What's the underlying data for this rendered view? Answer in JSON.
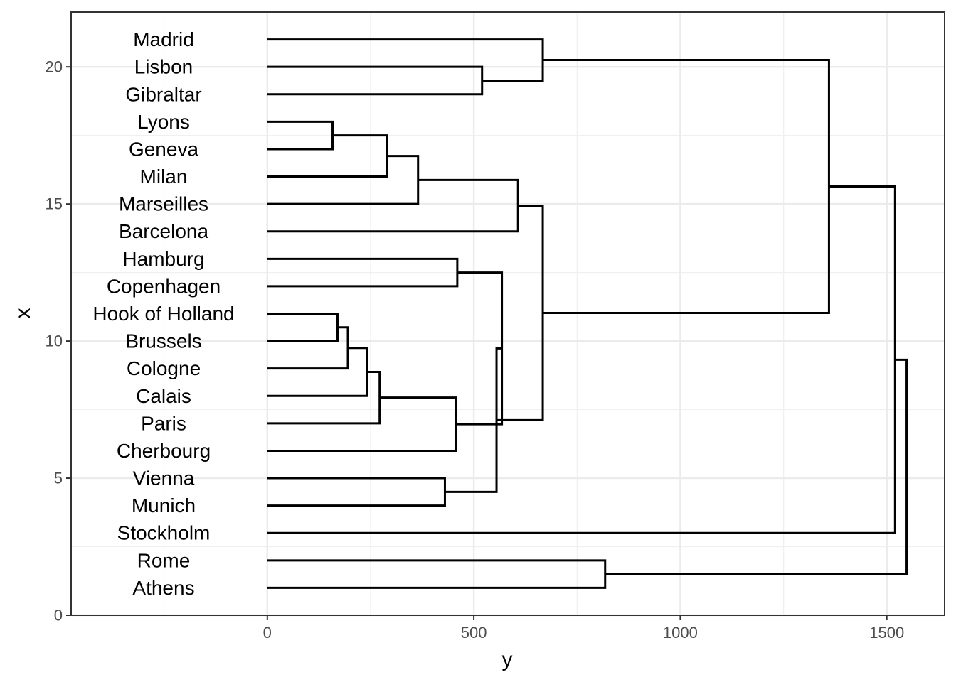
{
  "chart_data": {
    "type": "dendrogram",
    "orientation": "horizontal",
    "xlabel": "y",
    "ylabel": "x",
    "xlim": [
      -475,
      1640
    ],
    "ylim": [
      0,
      22
    ],
    "x_ticks": [
      0,
      500,
      1000,
      1500
    ],
    "y_ticks": [
      0,
      5,
      10,
      15,
      20
    ],
    "grid": true,
    "leaves": [
      {
        "label": "Madrid",
        "pos": 21
      },
      {
        "label": "Lisbon",
        "pos": 20
      },
      {
        "label": "Gibraltar",
        "pos": 19
      },
      {
        "label": "Lyons",
        "pos": 18
      },
      {
        "label": "Geneva",
        "pos": 17
      },
      {
        "label": "Milan",
        "pos": 16
      },
      {
        "label": "Marseilles",
        "pos": 15
      },
      {
        "label": "Barcelona",
        "pos": 14
      },
      {
        "label": "Hamburg",
        "pos": 13
      },
      {
        "label": "Copenhagen",
        "pos": 12
      },
      {
        "label": "Hook of Holland",
        "pos": 11
      },
      {
        "label": "Brussels",
        "pos": 10
      },
      {
        "label": "Cologne",
        "pos": 9
      },
      {
        "label": "Calais",
        "pos": 8
      },
      {
        "label": "Paris",
        "pos": 7
      },
      {
        "label": "Cherbourg",
        "pos": 6
      },
      {
        "label": "Vienna",
        "pos": 5
      },
      {
        "label": "Munich",
        "pos": 4
      },
      {
        "label": "Stockholm",
        "pos": 3
      },
      {
        "label": "Rome",
        "pos": 2
      },
      {
        "label": "Athens",
        "pos": 1
      }
    ],
    "merges": [
      {
        "pos": [
          18,
          17
        ],
        "from": [
          0,
          0
        ],
        "height": 158
      },
      {
        "pos": [
          17.5,
          16
        ],
        "from": [
          158,
          0
        ],
        "height": 290
      },
      {
        "pos": [
          16.75,
          15
        ],
        "from": [
          290,
          0
        ],
        "height": 365
      },
      {
        "pos": [
          15.875,
          14
        ],
        "from": [
          365,
          0
        ],
        "height": 607
      },
      {
        "pos": [
          11,
          10
        ],
        "from": [
          0,
          0
        ],
        "height": 170
      },
      {
        "pos": [
          10.5,
          9
        ],
        "from": [
          170,
          0
        ],
        "height": 195
      },
      {
        "pos": [
          9.75,
          8
        ],
        "from": [
          195,
          0
        ],
        "height": 242
      },
      {
        "pos": [
          8.875,
          7
        ],
        "from": [
          242,
          0
        ],
        "height": 272
      },
      {
        "pos": [
          7.9375,
          6
        ],
        "from": [
          272,
          0
        ],
        "height": 457
      },
      {
        "pos": [
          13,
          12
        ],
        "from": [
          0,
          0
        ],
        "height": 460
      },
      {
        "pos": [
          12.5,
          6.96875
        ],
        "from": [
          460,
          457
        ],
        "height": 568
      },
      {
        "pos": [
          5,
          4
        ],
        "from": [
          0,
          0
        ],
        "height": 430
      },
      {
        "pos": [
          9.734375,
          4.5
        ],
        "from": [
          568,
          430
        ],
        "height": 555
      },
      {
        "pos": [
          14.9375,
          7.1171875
        ],
        "from": [
          607,
          555
        ],
        "height": 667
      },
      {
        "pos": [
          20,
          19
        ],
        "from": [
          0,
          0
        ],
        "height": 520
      },
      {
        "pos": [
          21,
          19.5
        ],
        "from": [
          0,
          520
        ],
        "height": 667
      },
      {
        "pos": [
          20.25,
          11.02734375
        ],
        "from": [
          667,
          667
        ],
        "height": 1360
      },
      {
        "pos": [
          15.638671875,
          3
        ],
        "from": [
          1360,
          0
        ],
        "height": 1520
      },
      {
        "pos": [
          2,
          1
        ],
        "from": [
          0,
          0
        ],
        "height": 818
      },
      {
        "pos": [
          9.3193359375,
          1.5
        ],
        "from": [
          1520,
          818
        ],
        "height": 1548
      }
    ]
  }
}
